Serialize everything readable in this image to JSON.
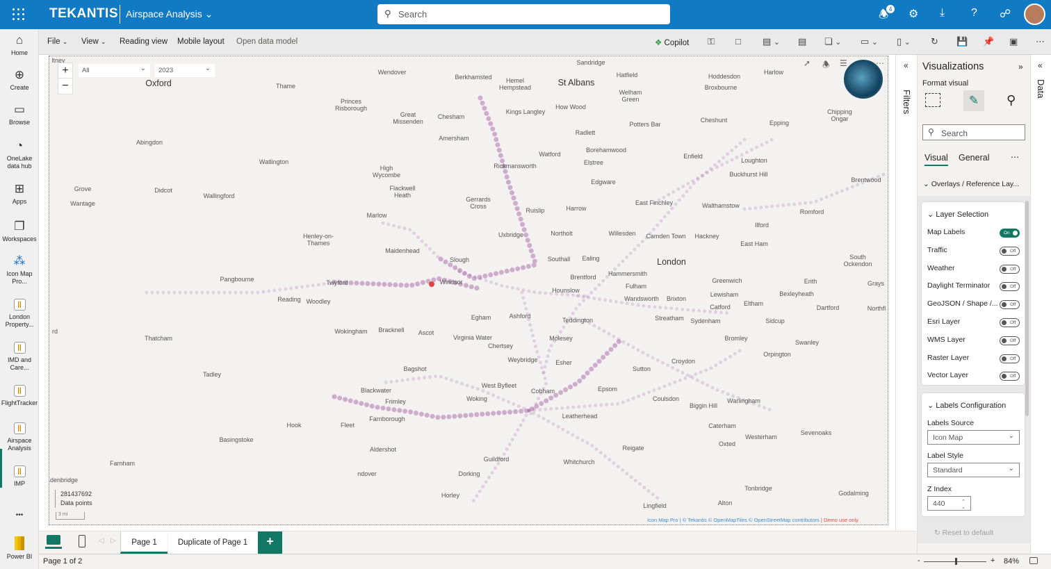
{
  "topbar": {
    "brand": "TEKANTIS",
    "report_name": "Airspace Analysis",
    "search_placeholder": "Search",
    "notification_count": "4"
  },
  "leftnav": [
    {
      "label": "Home",
      "icon": "home-icon",
      "glyph": "⌂"
    },
    {
      "label": "Create",
      "icon": "plus-circle-icon",
      "glyph": "⊕"
    },
    {
      "label": "Browse",
      "icon": "folder-icon",
      "glyph": "▭"
    },
    {
      "label": "OneLake data hub",
      "icon": "onelake-icon",
      "glyph": "◔"
    },
    {
      "label": "Apps",
      "icon": "apps-icon",
      "glyph": "⊞"
    },
    {
      "label": "Workspaces",
      "icon": "workspaces-icon",
      "glyph": "❐"
    },
    {
      "label": "Icon Map Pro...",
      "icon": "icon-map-pro-icon",
      "glyph": "⁂"
    },
    {
      "label": "London Property...",
      "icon": "report-icon"
    },
    {
      "label": "IMD and Care...",
      "icon": "report-icon"
    },
    {
      "label": "FlightTracker",
      "icon": "report-icon"
    },
    {
      "label": "Airspace Analysis",
      "icon": "report-icon",
      "active": true
    },
    {
      "label": "IMP",
      "icon": "report-icon"
    },
    {
      "label": "...",
      "icon": "more-icon"
    },
    {
      "label": "Power BI",
      "icon": "power-bi-icon"
    }
  ],
  "toolbar": {
    "file": "File",
    "view": "View",
    "reading_view": "Reading view",
    "mobile_layout": "Mobile layout",
    "open_data_model": "Open data model",
    "copilot": "Copilot"
  },
  "map": {
    "filter_category": "All",
    "filter_year": "2023",
    "data_points_value": "281437692",
    "data_points_label": "Data points",
    "scale": "3 mi",
    "attribution": "Icon Map Pro | © Tekantis © OpenMapTiles © OpenStreetMap contributors",
    "attribution_demo": "| Demo use only",
    "path_color": "#a0569e",
    "highlight_color": "#e8413b",
    "places": [
      "ltney",
      "Sandridge",
      "Wendover",
      "Berkhamsted",
      "Hemel Hempstead",
      "St Albans",
      "Hatfield",
      "Hoddesdon",
      "Harlow",
      "Oxford",
      "Thame",
      "Broxbourne",
      "Welham Green",
      "Princes Risborough",
      "Kings Langley",
      "How Wood",
      "Great Missenden",
      "Chesham",
      "Chipping Ongar",
      "Potters Bar",
      "Cheshunt",
      "Epping",
      "Radlett",
      "Amersham",
      "Abingdon",
      "Borehamwood",
      "Watford",
      "Enfield",
      "Loughton",
      "Watlington",
      "Elstree",
      "Rickmansworth",
      "High Wycombe",
      "Buckhurst Hill",
      "Brentwood",
      "Edgware",
      "Grove",
      "Didcot",
      "Flackwell Heath",
      "Wallingford",
      "Gerrards Cross",
      "East Finchley",
      "Wantage",
      "Walthamstow",
      "Harrow",
      "Ruislip",
      "Romford",
      "Marlow",
      "Ilford",
      "Northolt",
      "Willesden",
      "Uxbridge",
      "Camden Town",
      "Hackney",
      "Henley-on-Thames",
      "East Ham",
      "Maidenhead",
      "Slough",
      "Southall",
      "Ealing",
      "London",
      "South Ockendon",
      "Hammersmith",
      "Brentford",
      "Pangbourne",
      "Twyford",
      "Windsor",
      "Greenwich",
      "Erith",
      "Grays",
      "Fulham",
      "Hounslow",
      "Lewisham",
      "Bexleyheath",
      "Reading",
      "Woodley",
      "Wandsworth",
      "Brixton",
      "Catford",
      "Eltham",
      "Dartford",
      "Northfl",
      "Egham",
      "Ashford",
      "Teddington",
      "Streatham",
      "Sydenham",
      "Sidcup",
      "rd",
      "Wokingham",
      "Bracknell",
      "Ascot",
      "Virginia Water",
      "Thatcham",
      "Molesey",
      "Bromley",
      "Chertsey",
      "Swanley",
      "Orpington",
      "Weybridge",
      "Esher",
      "Croydon",
      "Bagshot",
      "Sutton",
      "Tadley",
      "West Byfleet",
      "Blackwater",
      "Cobham",
      "Epsom",
      "Frimley",
      "Woking",
      "Coulsdon",
      "Biggin Hill",
      "Warlingham",
      "Farnborough",
      "Leatherhead",
      "Hook",
      "Fleet",
      "Caterham",
      "Westerham",
      "Sevenoaks",
      "Basingstoke",
      "Oxted",
      "Aldershot",
      "Reigate",
      "Guildford",
      "Dorking",
      "Whitchurch",
      "Farnham",
      "ndover",
      "Edenbridge",
      "Tonbridge",
      "Godalming",
      "Horley",
      "Lingfield",
      "Alton"
    ]
  },
  "filters_label": "Filters",
  "data_label": "Data",
  "viz": {
    "title": "Visualizations",
    "subtitle": "Format visual",
    "search_placeholder": "Search",
    "tabs": [
      "Visual",
      "General"
    ],
    "section": "Overlays / Reference Lay...",
    "layer_selection": {
      "title": "Layer Selection",
      "items": [
        {
          "label": "Map Labels",
          "state": "On"
        },
        {
          "label": "Traffic",
          "state": "Off"
        },
        {
          "label": "Weather",
          "state": "Off"
        },
        {
          "label": "Daylight Terminator",
          "state": "Off"
        },
        {
          "label": "GeoJSON / Shape /...",
          "state": "Off"
        },
        {
          "label": "Esri Layer",
          "state": "Off"
        },
        {
          "label": "WMS Layer",
          "state": "Off"
        },
        {
          "label": "Raster Layer",
          "state": "Off"
        },
        {
          "label": "Vector Layer",
          "state": "Off"
        }
      ]
    },
    "labels_config": {
      "title": "Labels Configuration",
      "source_label": "Labels Source",
      "source_value": "Icon Map",
      "style_label": "Label Style",
      "style_value": "Standard",
      "z_label": "Z Index",
      "z_value": "440"
    },
    "reset": "Reset to default"
  },
  "pages": {
    "tabs": [
      "Page 1",
      "Duplicate of Page 1"
    ],
    "add": "+",
    "status": "Page 1 of 2"
  },
  "zoom": {
    "value": "84%",
    "level": 84
  },
  "accent": "#117865"
}
